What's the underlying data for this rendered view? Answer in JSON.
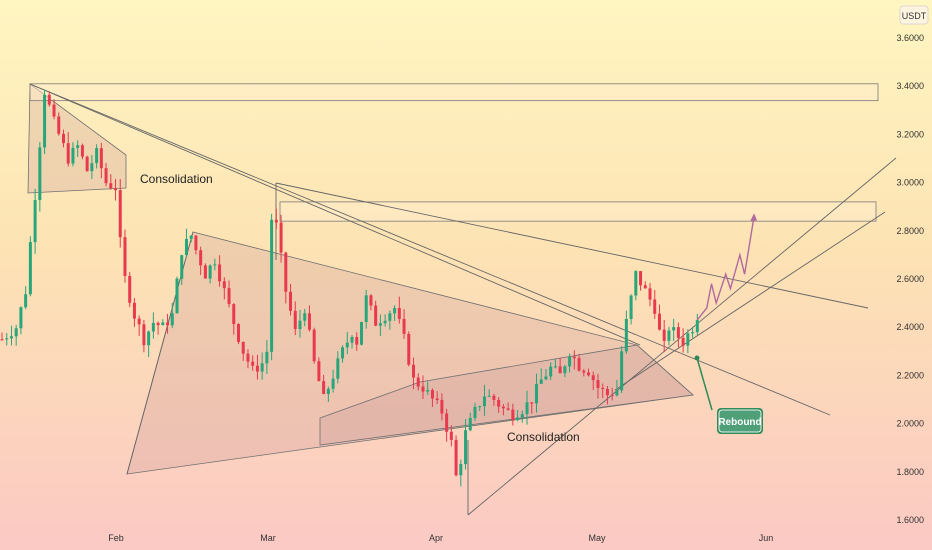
{
  "chart_data": {
    "type": "candlestick",
    "unit": "USDT",
    "x_labels": [
      "Feb",
      "Mar",
      "Apr",
      "May",
      "Jun"
    ],
    "y_ticks": [
      "3.6000",
      "3.4000",
      "3.2000",
      "3.0000",
      "2.8000",
      "2.6000",
      "2.4000",
      "2.2000",
      "2.0000",
      "1.8000",
      "1.6000"
    ],
    "ylim": [
      1.6,
      3.6
    ],
    "grid": false,
    "annotations": {
      "consolidation_top": "Consolidation",
      "consolidation_bottom": "Consolidation",
      "rebound": "Rebound"
    },
    "resistance_zones": [
      {
        "from": 3.34,
        "to": 3.41
      },
      {
        "from": 2.84,
        "to": 2.92
      }
    ],
    "price_path": [
      [
        0,
        2.35
      ],
      [
        3,
        2.4
      ],
      [
        5,
        2.55
      ],
      [
        7,
        2.95
      ],
      [
        9,
        3.38
      ],
      [
        11,
        3.25
      ],
      [
        14,
        3.1
      ],
      [
        16,
        3.15
      ],
      [
        18,
        3.05
      ],
      [
        20,
        3.12
      ],
      [
        22,
        3.0
      ],
      [
        24,
        2.98
      ],
      [
        25,
        2.75
      ],
      [
        26,
        2.6
      ],
      [
        28,
        2.45
      ],
      [
        30,
        2.35
      ],
      [
        32,
        2.42
      ],
      [
        34,
        2.4
      ],
      [
        36,
        2.45
      ],
      [
        38,
        2.72
      ],
      [
        40,
        2.78
      ],
      [
        41,
        2.72
      ],
      [
        43,
        2.62
      ],
      [
        45,
        2.68
      ],
      [
        47,
        2.55
      ],
      [
        49,
        2.42
      ],
      [
        51,
        2.3
      ],
      [
        53,
        2.22
      ],
      [
        55,
        2.25
      ],
      [
        56,
        2.3
      ],
      [
        57,
        2.85
      ],
      [
        58,
        2.82
      ],
      [
        60,
        2.55
      ],
      [
        62,
        2.38
      ],
      [
        64,
        2.48
      ],
      [
        66,
        2.25
      ],
      [
        68,
        2.1
      ],
      [
        70,
        2.2
      ],
      [
        72,
        2.3
      ],
      [
        74,
        2.38
      ],
      [
        75,
        2.34
      ],
      [
        77,
        2.52
      ],
      [
        79,
        2.42
      ],
      [
        81,
        2.45
      ],
      [
        83,
        2.48
      ],
      [
        85,
        2.35
      ],
      [
        87,
        2.18
      ],
      [
        89,
        2.15
      ],
      [
        91,
        2.1
      ],
      [
        93,
        2.05
      ],
      [
        95,
        1.92
      ],
      [
        96,
        1.78
      ],
      [
        97,
        1.85
      ],
      [
        98,
        1.96
      ],
      [
        100,
        2.05
      ],
      [
        102,
        2.12
      ],
      [
        104,
        2.1
      ],
      [
        106,
        2.06
      ],
      [
        108,
        2.04
      ],
      [
        110,
        2.06
      ],
      [
        112,
        2.1
      ],
      [
        114,
        2.18
      ],
      [
        116,
        2.23
      ],
      [
        118,
        2.2
      ],
      [
        120,
        2.3
      ],
      [
        122,
        2.24
      ],
      [
        124,
        2.22
      ],
      [
        126,
        2.15
      ],
      [
        128,
        2.12
      ],
      [
        130,
        2.14
      ],
      [
        131,
        2.3
      ],
      [
        132,
        2.42
      ],
      [
        134,
        2.62
      ],
      [
        136,
        2.55
      ],
      [
        138,
        2.48
      ],
      [
        139,
        2.38
      ],
      [
        140,
        2.32
      ],
      [
        141,
        2.4
      ],
      [
        142,
        2.38
      ],
      [
        144,
        2.34
      ],
      [
        146,
        2.4
      ],
      [
        147,
        2.45
      ]
    ],
    "projection_path": [
      [
        147,
        2.43
      ],
      [
        149,
        2.48
      ],
      [
        150,
        2.58
      ],
      [
        151,
        2.5
      ],
      [
        153,
        2.62
      ],
      [
        154,
        2.56
      ],
      [
        156,
        2.7
      ],
      [
        157,
        2.62
      ],
      [
        159,
        2.86
      ]
    ]
  }
}
